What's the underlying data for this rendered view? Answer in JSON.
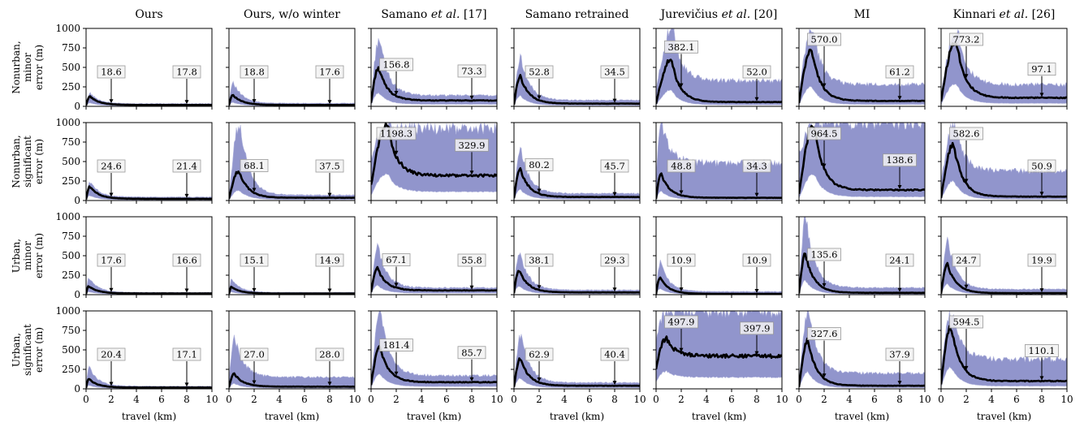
{
  "chart_data": {
    "type": "area",
    "rows": [
      {
        "label": [
          "Nonurban,",
          "minor",
          "error (m)"
        ]
      },
      {
        "label": [
          "Nonurban,",
          "significant",
          "error (m)"
        ]
      },
      {
        "label": [
          "Urban,",
          "minor",
          "error (m)"
        ]
      },
      {
        "label": [
          "Urban,",
          "significant",
          "error (m)"
        ]
      }
    ],
    "columns": [
      {
        "title": [
          "Ours"
        ]
      },
      {
        "title": [
          "Ours, w/o winter"
        ]
      },
      {
        "title": [
          "Samano ",
          "et al.",
          " [17]"
        ]
      },
      {
        "title": [
          "Samano retrained"
        ]
      },
      {
        "title": [
          "Jurevičius ",
          "et al.",
          " [20]"
        ]
      },
      {
        "title": [
          "MI"
        ]
      },
      {
        "title": [
          "Kinnari ",
          "et al.",
          " [26]"
        ]
      }
    ],
    "xlabel": "travel (km)",
    "xlim": [
      0,
      10
    ],
    "ylim": [
      0,
      1000
    ],
    "xticks": [
      0,
      2,
      4,
      6,
      8,
      10
    ],
    "yticks": [
      0,
      250,
      500,
      750,
      1000
    ],
    "annotation_x": [
      2,
      8
    ],
    "panels": [
      {
        "row": 0,
        "col": 0,
        "peak_x": 0.3,
        "peak_y": 130,
        "tail_y": 18,
        "upper_peak_y": 170,
        "upper_tail_y": 35,
        "notes": [
          {
            "x": 2,
            "label": "18.6"
          },
          {
            "x": 8,
            "label": "17.8"
          }
        ]
      },
      {
        "row": 0,
        "col": 1,
        "peak_x": 0.3,
        "peak_y": 150,
        "tail_y": 18,
        "upper_peak_y": 320,
        "upper_tail_y": 40,
        "notes": [
          {
            "x": 2,
            "label": "18.8"
          },
          {
            "x": 8,
            "label": "17.6"
          }
        ]
      },
      {
        "row": 0,
        "col": 2,
        "peak_x": 0.6,
        "peak_y": 500,
        "tail_y": 75,
        "upper_peak_y": 880,
        "upper_tail_y": 140,
        "notes": [
          {
            "x": 2,
            "label": "156.8"
          },
          {
            "x": 8,
            "label": "73.3"
          }
        ]
      },
      {
        "row": 0,
        "col": 3,
        "peak_x": 0.5,
        "peak_y": 390,
        "tail_y": 35,
        "upper_peak_y": 640,
        "upper_tail_y": 80,
        "notes": [
          {
            "x": 2,
            "label": "52.8"
          },
          {
            "x": 8,
            "label": "34.5"
          }
        ]
      },
      {
        "row": 0,
        "col": 4,
        "peak_x": 1.2,
        "peak_y": 600,
        "tail_y": 55,
        "upper_peak_y": 1000,
        "upper_tail_y": 330,
        "notes": [
          {
            "x": 2,
            "label": "382.1"
          },
          {
            "x": 8,
            "label": "52.0"
          }
        ]
      },
      {
        "row": 0,
        "col": 5,
        "peak_x": 1.0,
        "peak_y": 730,
        "tail_y": 70,
        "upper_peak_y": 1000,
        "upper_tail_y": 280,
        "notes": [
          {
            "x": 2,
            "label": "570.0"
          },
          {
            "x": 8,
            "label": "61.2"
          }
        ]
      },
      {
        "row": 0,
        "col": 6,
        "peak_x": 1.2,
        "peak_y": 850,
        "tail_y": 110,
        "upper_peak_y": 1000,
        "upper_tail_y": 280,
        "notes": [
          {
            "x": 2,
            "label": "773.2"
          },
          {
            "x": 8,
            "label": "97.1"
          }
        ]
      },
      {
        "row": 1,
        "col": 0,
        "peak_x": 0.3,
        "peak_y": 180,
        "tail_y": 22,
        "upper_peak_y": 240,
        "upper_tail_y": 45,
        "notes": [
          {
            "x": 2,
            "label": "24.6"
          },
          {
            "x": 8,
            "label": "21.4"
          }
        ]
      },
      {
        "row": 1,
        "col": 1,
        "peak_x": 0.8,
        "peak_y": 380,
        "tail_y": 35,
        "upper_peak_y": 1000,
        "upper_tail_y": 70,
        "notes": [
          {
            "x": 2,
            "label": "68.1"
          },
          {
            "x": 8,
            "label": "37.5"
          }
        ]
      },
      {
        "row": 1,
        "col": 2,
        "peak_x": 1.3,
        "peak_y": 1000,
        "tail_y": 320,
        "upper_peak_y": 1000,
        "upper_tail_y": 920,
        "notes": [
          {
            "x": 2,
            "label": "1198.3"
          },
          {
            "x": 8,
            "label": "329.9"
          }
        ]
      },
      {
        "row": 1,
        "col": 3,
        "peak_x": 0.5,
        "peak_y": 400,
        "tail_y": 45,
        "upper_peak_y": 650,
        "upper_tail_y": 90,
        "notes": [
          {
            "x": 2,
            "label": "80.2"
          },
          {
            "x": 8,
            "label": "45.7"
          }
        ]
      },
      {
        "row": 1,
        "col": 4,
        "peak_x": 0.4,
        "peak_y": 340,
        "tail_y": 35,
        "upper_peak_y": 1000,
        "upper_tail_y": 480,
        "notes": [
          {
            "x": 2,
            "label": "48.8"
          },
          {
            "x": 8,
            "label": "34.3"
          }
        ]
      },
      {
        "row": 1,
        "col": 5,
        "peak_x": 1.2,
        "peak_y": 980,
        "tail_y": 135,
        "upper_peak_y": 1000,
        "upper_tail_y": 1000,
        "notes": [
          {
            "x": 2,
            "label": "964.5"
          },
          {
            "x": 8,
            "label": "138.6"
          }
        ]
      },
      {
        "row": 1,
        "col": 6,
        "peak_x": 1.0,
        "peak_y": 720,
        "tail_y": 50,
        "upper_peak_y": 1000,
        "upper_tail_y": 380,
        "notes": [
          {
            "x": 2,
            "label": "582.6"
          },
          {
            "x": 8,
            "label": "50.9"
          }
        ]
      },
      {
        "row": 2,
        "col": 0,
        "peak_x": 0.2,
        "peak_y": 110,
        "tail_y": 16,
        "upper_peak_y": 220,
        "upper_tail_y": 30,
        "notes": [
          {
            "x": 2,
            "label": "17.6"
          },
          {
            "x": 8,
            "label": "16.6"
          }
        ]
      },
      {
        "row": 2,
        "col": 1,
        "peak_x": 0.2,
        "peak_y": 100,
        "tail_y": 15,
        "upper_peak_y": 200,
        "upper_tail_y": 30,
        "notes": [
          {
            "x": 2,
            "label": "15.1"
          },
          {
            "x": 8,
            "label": "14.9"
          }
        ]
      },
      {
        "row": 2,
        "col": 2,
        "peak_x": 0.5,
        "peak_y": 340,
        "tail_y": 55,
        "upper_peak_y": 620,
        "upper_tail_y": 90,
        "notes": [
          {
            "x": 2,
            "label": "67.1"
          },
          {
            "x": 8,
            "label": "55.8"
          }
        ]
      },
      {
        "row": 2,
        "col": 3,
        "peak_x": 0.4,
        "peak_y": 320,
        "tail_y": 29,
        "upper_peak_y": 560,
        "upper_tail_y": 60,
        "notes": [
          {
            "x": 2,
            "label": "38.1"
          },
          {
            "x": 8,
            "label": "29.3"
          }
        ]
      },
      {
        "row": 2,
        "col": 4,
        "peak_x": 0.3,
        "peak_y": 220,
        "tail_y": 11,
        "upper_peak_y": 420,
        "upper_tail_y": 40,
        "notes": [
          {
            "x": 2,
            "label": "10.9"
          },
          {
            "x": 8,
            "label": "10.9"
          }
        ]
      },
      {
        "row": 2,
        "col": 5,
        "peak_x": 0.5,
        "peak_y": 520,
        "tail_y": 24,
        "upper_peak_y": 1000,
        "upper_tail_y": 90,
        "notes": [
          {
            "x": 2,
            "label": "135.6"
          },
          {
            "x": 8,
            "label": "24.1"
          }
        ]
      },
      {
        "row": 2,
        "col": 6,
        "peak_x": 0.5,
        "peak_y": 390,
        "tail_y": 20,
        "upper_peak_y": 700,
        "upper_tail_y": 70,
        "notes": [
          {
            "x": 2,
            "label": "24.7"
          },
          {
            "x": 8,
            "label": "19.9"
          }
        ]
      },
      {
        "row": 3,
        "col": 0,
        "peak_x": 0.2,
        "peak_y": 130,
        "tail_y": 17,
        "upper_peak_y": 290,
        "upper_tail_y": 35,
        "notes": [
          {
            "x": 2,
            "label": "20.4"
          },
          {
            "x": 8,
            "label": "17.1"
          }
        ]
      },
      {
        "row": 3,
        "col": 1,
        "peak_x": 0.4,
        "peak_y": 200,
        "tail_y": 28,
        "upper_peak_y": 680,
        "upper_tail_y": 150,
        "notes": [
          {
            "x": 2,
            "label": "27.0"
          },
          {
            "x": 8,
            "label": "28.0"
          }
        ]
      },
      {
        "row": 3,
        "col": 2,
        "peak_x": 0.7,
        "peak_y": 540,
        "tail_y": 85,
        "upper_peak_y": 1000,
        "upper_tail_y": 170,
        "notes": [
          {
            "x": 2,
            "label": "181.4"
          },
          {
            "x": 8,
            "label": "85.7"
          }
        ]
      },
      {
        "row": 3,
        "col": 3,
        "peak_x": 0.5,
        "peak_y": 390,
        "tail_y": 40,
        "upper_peak_y": 700,
        "upper_tail_y": 80,
        "notes": [
          {
            "x": 2,
            "label": "62.9"
          },
          {
            "x": 8,
            "label": "40.4"
          }
        ]
      },
      {
        "row": 3,
        "col": 4,
        "peak_x": 0.8,
        "peak_y": 650,
        "tail_y": 420,
        "upper_peak_y": 1000,
        "upper_tail_y": 1000,
        "notes": [
          {
            "x": 2,
            "label": "497.9"
          },
          {
            "x": 8,
            "label": "397.9"
          }
        ]
      },
      {
        "row": 3,
        "col": 5,
        "peak_x": 0.7,
        "peak_y": 620,
        "tail_y": 40,
        "upper_peak_y": 1000,
        "upper_tail_y": 200,
        "notes": [
          {
            "x": 2,
            "label": "327.6"
          },
          {
            "x": 8,
            "label": "37.9"
          }
        ]
      },
      {
        "row": 3,
        "col": 6,
        "peak_x": 0.8,
        "peak_y": 800,
        "tail_y": 100,
        "upper_peak_y": 1000,
        "upper_tail_y": 380,
        "notes": [
          {
            "x": 2,
            "label": "594.5"
          },
          {
            "x": 8,
            "label": "110.1"
          }
        ]
      }
    ]
  }
}
